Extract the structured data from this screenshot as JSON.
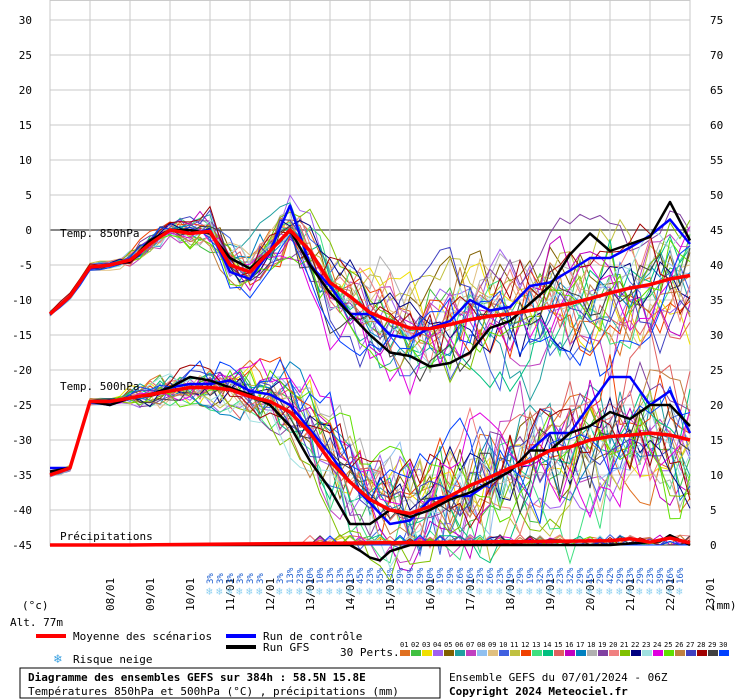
{
  "header": {
    "left_axis_unit": "(°c)",
    "right_axis_unit": "(mm)",
    "altitude": "Alt. 77m"
  },
  "legend": {
    "mean_label": "Moyenne des scénarios",
    "control_label": "Run de contrôle",
    "gfs_label": "Run GFS",
    "snow_label": "Risque neige",
    "perturbations_label": "30 Perts.",
    "perturbation_ids": [
      "01",
      "02",
      "03",
      "04",
      "05",
      "06",
      "07",
      "08",
      "09",
      "10",
      "11",
      "12",
      "13",
      "14",
      "15",
      "16",
      "17",
      "18",
      "19",
      "20",
      "21",
      "22",
      "23",
      "24",
      "25",
      "26",
      "27",
      "28",
      "29",
      "30"
    ],
    "perturbation_colors": [
      "#e07020",
      "#40c040",
      "#f0e000",
      "#a060f0",
      "#806000",
      "#20a0a0",
      "#c040c0",
      "#90c0f0",
      "#e0c080",
      "#4060e0",
      "#c0c040",
      "#f04000",
      "#40e080",
      "#00c080",
      "#e06060",
      "#c000c0",
      "#0080c0",
      "#b0b0b0",
      "#8040a0",
      "#f08080",
      "#80c000",
      "#000080",
      "#a0e0e0",
      "#e000e0",
      "#60e000",
      "#c08040",
      "#4040c0",
      "#a00000",
      "#404040",
      "#0040ff"
    ]
  },
  "footer": {
    "title": "Diagramme des ensembles GEFS sur 384h : 58.5N 15.8E",
    "subtitle": "Températures 850hPa et 500hPa (°C) , précipitations (mm)",
    "run_info": "Ensemble GEFS du 07/01/2024 - 06Z",
    "copyright": "Copyright 2024 Meteociel.fr"
  },
  "chart_data": {
    "type": "line",
    "x_ticks": [
      "08/01",
      "09/01",
      "10/01",
      "11/01",
      "12/01",
      "13/01",
      "14/01",
      "15/01",
      "16/01",
      "17/01",
      "18/01",
      "19/01",
      "20/01",
      "21/01",
      "22/01",
      "23/01"
    ],
    "x_range_hours": [
      0,
      384
    ],
    "y_left_range": [
      -45,
      30
    ],
    "y_left_ticks": [
      30,
      25,
      20,
      15,
      10,
      5,
      0,
      -5,
      -10,
      -15,
      -20,
      -25,
      -30,
      -35,
      -40,
      -45
    ],
    "y_right_range": [
      0,
      75
    ],
    "y_right_ticks": [
      75,
      70,
      65,
      60,
      55,
      50,
      45,
      40,
      35,
      30,
      25,
      20,
      15,
      10,
      5,
      0
    ],
    "annotations": {
      "t850_label": "Temp. 850hPa",
      "t500_label": "Temp. 500hPa",
      "precip_label": "Précipitations"
    },
    "snow_risk": {
      "label": "Risque neige",
      "entries": [
        {
          "hour": 96,
          "pct": "3%"
        },
        {
          "hour": 102,
          "pct": "3%"
        },
        {
          "hour": 108,
          "pct": "3%"
        },
        {
          "hour": 114,
          "pct": "3%"
        },
        {
          "hour": 120,
          "pct": "3%"
        },
        {
          "hour": 126,
          "pct": "3%"
        },
        {
          "hour": 138,
          "pct": "3%"
        },
        {
          "hour": 144,
          "pct": "13%"
        },
        {
          "hour": 150,
          "pct": "23%"
        },
        {
          "hour": 156,
          "pct": "20%"
        },
        {
          "hour": 162,
          "pct": "10%"
        },
        {
          "hour": 168,
          "pct": "13%"
        },
        {
          "hour": 174,
          "pct": "13%"
        },
        {
          "hour": 180,
          "pct": "23%"
        },
        {
          "hour": 186,
          "pct": "45%"
        },
        {
          "hour": 192,
          "pct": "23%"
        },
        {
          "hour": 198,
          "pct": "35%"
        },
        {
          "hour": 204,
          "pct": "23%"
        },
        {
          "hour": 210,
          "pct": "29%"
        },
        {
          "hour": 216,
          "pct": "29%"
        },
        {
          "hour": 222,
          "pct": "29%"
        },
        {
          "hour": 228,
          "pct": "20%"
        },
        {
          "hour": 234,
          "pct": "19%"
        },
        {
          "hour": 240,
          "pct": "29%"
        },
        {
          "hour": 246,
          "pct": "26%"
        },
        {
          "hour": 252,
          "pct": "26%"
        },
        {
          "hour": 258,
          "pct": "23%"
        },
        {
          "hour": 264,
          "pct": "26%"
        },
        {
          "hour": 270,
          "pct": "23%"
        },
        {
          "hour": 276,
          "pct": "29%"
        },
        {
          "hour": 282,
          "pct": "29%"
        },
        {
          "hour": 288,
          "pct": "19%"
        },
        {
          "hour": 294,
          "pct": "32%"
        },
        {
          "hour": 300,
          "pct": "23%"
        },
        {
          "hour": 306,
          "pct": "23%"
        },
        {
          "hour": 312,
          "pct": "32%"
        },
        {
          "hour": 318,
          "pct": "29%"
        },
        {
          "hour": 324,
          "pct": "45%"
        },
        {
          "hour": 330,
          "pct": "29%"
        },
        {
          "hour": 336,
          "pct": "42%"
        },
        {
          "hour": 342,
          "pct": "29%"
        },
        {
          "hour": 348,
          "pct": "23%"
        },
        {
          "hour": 354,
          "pct": "29%"
        },
        {
          "hour": 360,
          "pct": "23%"
        },
        {
          "hour": 366,
          "pct": "39%"
        },
        {
          "hour": 372,
          "pct": "26%"
        },
        {
          "hour": 378,
          "pct": "16%"
        }
      ]
    },
    "series": [
      {
        "name": "Moyenne des scénarios",
        "level": "850hPa",
        "hours": [
          0,
          12,
          24,
          36,
          48,
          60,
          72,
          84,
          96,
          108,
          120,
          132,
          144,
          156,
          168,
          180,
          192,
          204,
          216,
          228,
          240,
          252,
          264,
          276,
          288,
          300,
          312,
          324,
          336,
          348,
          360,
          372,
          384
        ],
        "values": [
          -12,
          -9.5,
          -5.3,
          -5,
          -4.3,
          -2,
          0,
          -0.5,
          -0.2,
          -5,
          -6,
          -3,
          0,
          -3,
          -7.5,
          -9.5,
          -11.8,
          -13,
          -14,
          -14.1,
          -13.5,
          -12.8,
          -12.3,
          -12,
          -11.5,
          -11,
          -10.5,
          -9.8,
          -9,
          -8.3,
          -7.8,
          -7,
          -6.5
        ]
      },
      {
        "name": "Moyenne des scénarios",
        "level": "500hPa",
        "hours": [
          0,
          12,
          24,
          36,
          48,
          60,
          72,
          84,
          96,
          108,
          120,
          132,
          144,
          156,
          168,
          180,
          192,
          204,
          216,
          228,
          240,
          252,
          264,
          276,
          288,
          300,
          312,
          324,
          336,
          348,
          360,
          372,
          384
        ],
        "values": [
          -35,
          -34,
          -24.5,
          -24.5,
          -24,
          -23.5,
          -23,
          -22.5,
          -22.5,
          -22.8,
          -23.8,
          -24.5,
          -26,
          -29,
          -33,
          -36,
          -38.5,
          -40,
          -40.5,
          -39.5,
          -38,
          -36.5,
          -35.3,
          -34,
          -33,
          -31.5,
          -31,
          -30,
          -29.5,
          -29.3,
          -29,
          -29.3,
          -30
        ]
      },
      {
        "name": "Run de contrôle",
        "level": "850hPa",
        "hours": [
          0,
          12,
          24,
          36,
          48,
          60,
          72,
          84,
          96,
          108,
          120,
          132,
          144,
          156,
          168,
          180,
          192,
          204,
          216,
          228,
          240,
          252,
          264,
          276,
          288,
          300,
          312,
          324,
          336,
          348,
          360,
          372,
          384
        ],
        "values": [
          -12,
          -9.5,
          -5.5,
          -5,
          -4.5,
          -1.5,
          0,
          -0.5,
          0,
          -6,
          -7,
          -3,
          3.5,
          -5,
          -8,
          -12,
          -12,
          -15,
          -15.5,
          -14,
          -13,
          -10,
          -11.5,
          -11,
          -8,
          -7.5,
          -5.8,
          -4,
          -4,
          -2.5,
          -0.8,
          1.5,
          -2
        ]
      },
      {
        "name": "Run de contrôle",
        "level": "500hPa",
        "hours": [
          0,
          12,
          24,
          36,
          48,
          60,
          72,
          84,
          96,
          108,
          120,
          132,
          144,
          156,
          168,
          180,
          192,
          204,
          216,
          228,
          240,
          252,
          264,
          276,
          288,
          300,
          312,
          324,
          336,
          348,
          360,
          372,
          384
        ],
        "values": [
          -34,
          -34,
          -24.5,
          -25,
          -24,
          -23.5,
          -22.5,
          -22,
          -22,
          -21.5,
          -23,
          -23.5,
          -25,
          -28.5,
          -32,
          -36,
          -39,
          -42,
          -41.5,
          -38.5,
          -38,
          -38,
          -36,
          -34.5,
          -31.5,
          -29,
          -29,
          -25,
          -21,
          -21,
          -25,
          -23,
          -29
        ]
      },
      {
        "name": "Run GFS",
        "level": "850hPa",
        "hours": [
          0,
          12,
          24,
          36,
          48,
          60,
          72,
          84,
          96,
          108,
          120,
          132,
          144,
          156,
          168,
          180,
          192,
          204,
          216,
          228,
          240,
          252,
          264,
          276,
          288,
          300,
          312,
          324,
          336,
          348,
          360,
          372,
          384
        ],
        "values": [
          -12,
          -9.5,
          -5.3,
          -5,
          -4.5,
          -1.5,
          0,
          0,
          -0.5,
          -4,
          -5.5,
          -3,
          0,
          -5,
          -9,
          -12,
          -15,
          -17.5,
          -18,
          -19.5,
          -19,
          -17.5,
          -14,
          -13,
          -10.5,
          -8,
          -3.5,
          -0.5,
          -3,
          -2,
          -1,
          4,
          -1.5
        ]
      },
      {
        "name": "Run GFS",
        "level": "500hPa",
        "hours": [
          0,
          12,
          24,
          36,
          48,
          60,
          72,
          84,
          96,
          108,
          120,
          132,
          144,
          156,
          168,
          180,
          192,
          204,
          216,
          228,
          240,
          252,
          264,
          276,
          288,
          300,
          312,
          324,
          336,
          348,
          360,
          372,
          384
        ],
        "values": [
          -34.5,
          -34,
          -24.5,
          -25,
          -24,
          -23.5,
          -22.5,
          -21,
          -21.5,
          -22.5,
          -23.5,
          -25,
          -28,
          -33,
          -37,
          -42,
          -42,
          -40,
          -41,
          -40,
          -38.5,
          -37.5,
          -36,
          -34.5,
          -31.5,
          -31.5,
          -29,
          -28,
          -26,
          -27,
          -25,
          -25,
          -28
        ]
      },
      {
        "name": "Moyenne des scénarios",
        "level": "precip_mm",
        "hours": [
          0,
          48,
          96,
          144,
          192,
          240,
          288,
          336,
          348,
          360,
          372,
          384
        ],
        "values": [
          0,
          0,
          0.1,
          0.2,
          0.3,
          0.4,
          0.5,
          0.6,
          0.9,
          0.4,
          1.0,
          0.3
        ]
      },
      {
        "name": "Run GFS",
        "level": "precip_mm",
        "hours": [
          0,
          144,
          180,
          186,
          192,
          198,
          204,
          216,
          240,
          288,
          336,
          366,
          372,
          384
        ],
        "values": [
          0,
          0,
          0,
          -0.8,
          -1.8,
          -2.2,
          -0.9,
          0,
          0,
          0,
          0,
          0.5,
          1.4,
          0
        ]
      }
    ]
  }
}
